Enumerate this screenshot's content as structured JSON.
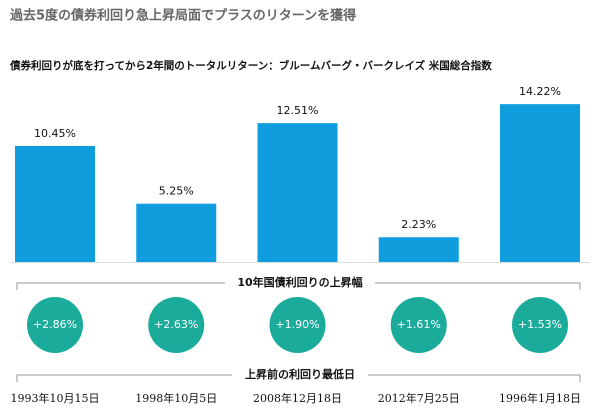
{
  "chart_data": {
    "type": "bar",
    "title": "過去5度の債券利回り急上昇局面でプラスのリターンを獲得",
    "subtitle": "債券利回りが底を打ってから2年間のトータルリターン：ブルームバーグ・バークレイズ 米国総合指数",
    "categories": [
      "1993年10月15日",
      "1998年10月5日",
      "2008年12月18日",
      "2012年7月25日",
      "1996年1月18日"
    ],
    "values": [
      10.45,
      5.25,
      12.51,
      2.23,
      14.22
    ],
    "value_labels": [
      "10.45%",
      "5.25%",
      "12.51%",
      "2.23%",
      "14.22%"
    ],
    "color": "#0f9ddd",
    "yield_rise": {
      "label": "10年国債利回りの上昇幅",
      "color": "#1aab9b",
      "values": [
        2.86,
        2.63,
        1.9,
        1.61,
        1.53
      ],
      "value_labels": [
        "+2.86%",
        "+2.63%",
        "+1.90%",
        "+1.61%",
        "+1.53%"
      ]
    },
    "categories_label": "上昇前の利回り最低日"
  }
}
